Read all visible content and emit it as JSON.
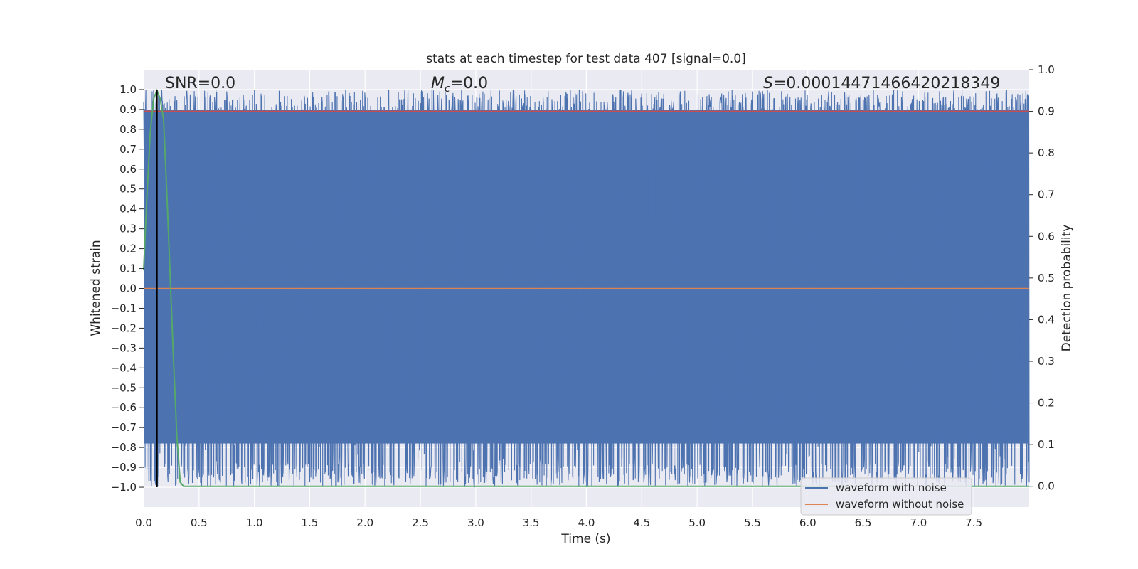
{
  "chart_data": {
    "type": "line",
    "title": "stats at each timestep for test data 407 [signal=0.0]",
    "xlabel": "Time (s)",
    "ylabel": "Whitened strain",
    "y2label": "Detection probability",
    "xlim": [
      0.0,
      8.0
    ],
    "ylim": [
      -1.1,
      1.1
    ],
    "y2lim": [
      -0.05,
      1.0
    ],
    "x_ticks": [
      0.0,
      0.5,
      1.0,
      1.5,
      2.0,
      2.5,
      3.0,
      3.5,
      4.0,
      4.5,
      5.0,
      5.5,
      6.0,
      6.5,
      7.0,
      7.5
    ],
    "x_tick_labels": [
      "0.0",
      "0.5",
      "1.0",
      "1.5",
      "2.0",
      "2.5",
      "3.0",
      "3.5",
      "4.0",
      "4.5",
      "5.0",
      "5.5",
      "6.0",
      "6.5",
      "7.0",
      "7.5"
    ],
    "y_ticks": [
      1.0,
      0.9,
      0.8,
      0.7,
      0.6,
      0.5,
      0.4,
      0.3,
      0.2,
      0.1,
      0.0,
      -0.1,
      -0.2,
      -0.3,
      -0.4,
      -0.5,
      -0.6,
      -0.7,
      -0.8,
      -0.9,
      -1.0
    ],
    "y_tick_labels": [
      "1.0",
      "0.9",
      "0.8",
      "0.7",
      "0.6",
      "0.5",
      "0.4",
      "0.3",
      "0.2",
      "0.1",
      "0.0",
      "−0.1",
      "−0.2",
      "−0.3",
      "−0.4",
      "−0.5",
      "−0.6",
      "−0.7",
      "−0.8",
      "−0.9",
      "−1.0"
    ],
    "y2_ticks": [
      1.0,
      0.9,
      0.8,
      0.7,
      0.6,
      0.5,
      0.4,
      0.3,
      0.2,
      0.1,
      0.0
    ],
    "y2_tick_labels": [
      "1.0",
      "0.9",
      "0.8",
      "0.7",
      "0.6",
      "0.5",
      "0.4",
      "0.3",
      "0.2",
      "0.1",
      "0.0"
    ],
    "series": [
      {
        "name": "waveform with noise",
        "color": "#4c72b0",
        "description_values": "dense noise filling approximately -1.0 to 1.0 over the full time range",
        "range": [
          -1.0,
          1.0
        ],
        "seed": 407
      },
      {
        "name": "waveform without noise",
        "color": "#dd8452",
        "x": [
          0.0,
          8.0
        ],
        "values": [
          0.0,
          0.0
        ]
      },
      {
        "name": "detection probability",
        "axis": "right",
        "color": "#55a868",
        "x": [
          0.0,
          0.03,
          0.06,
          0.09,
          0.12,
          0.15,
          0.18,
          0.21,
          0.24,
          0.27,
          0.3,
          0.33,
          0.36,
          8.0
        ],
        "values": [
          0.52,
          0.7,
          0.85,
          0.93,
          0.95,
          0.93,
          0.88,
          0.7,
          0.5,
          0.3,
          0.12,
          0.01,
          0.0,
          0.0
        ]
      }
    ],
    "threshold": {
      "axis": "right",
      "value": 0.9,
      "color": "#c44e52"
    },
    "marker_line": {
      "x": 0.12,
      "color": "#000000"
    },
    "annotations": {
      "snr": "SNR=0.0",
      "mc_symbol": "M",
      "mc_sub": "c",
      "mc_value": "=0.0",
      "s_symbol": "S",
      "s_value": "=0.00014471466420218349"
    },
    "legend": {
      "placement": "lower-right",
      "entries": [
        "waveform with noise",
        "waveform without noise"
      ]
    },
    "colors": {
      "background": "#eaeaf2",
      "grid": "#ffffff",
      "noise": "#4c72b0",
      "clean": "#dd8452",
      "probability": "#55a868",
      "threshold": "#c44e52"
    }
  }
}
